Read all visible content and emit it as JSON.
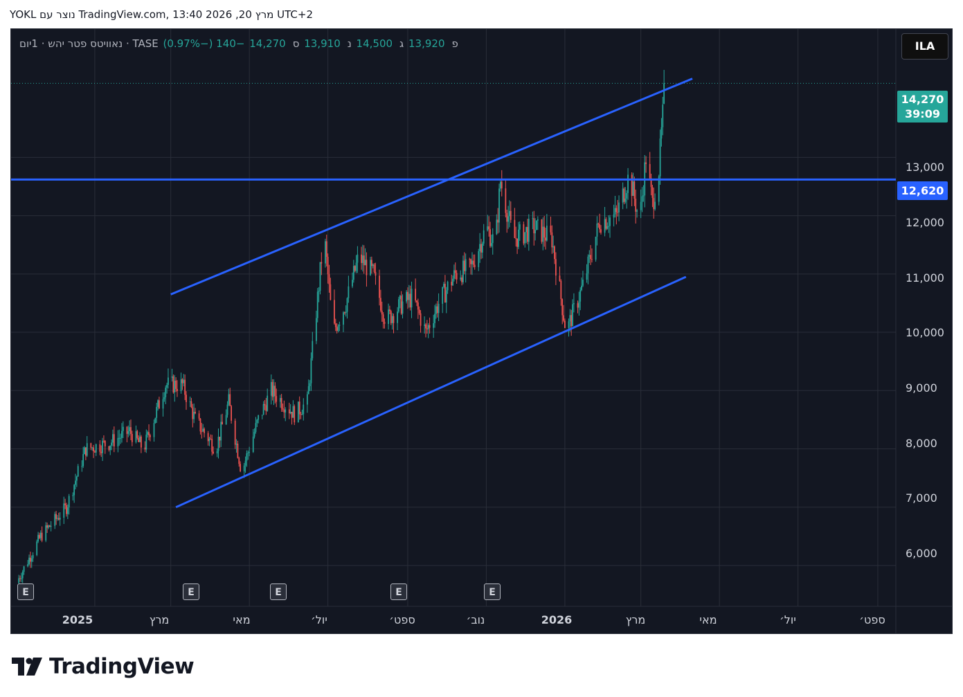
{
  "caption": "YOKL נוצר עם TradingView.com, 13:40 2026 ,20 מרץ UTC+2",
  "legend": {
    "title": "נאוויטס פטר יהש · 1יום · TASE",
    "open_label": "פ",
    "open": "13,920",
    "high_label": "ג",
    "high": "14,500",
    "low_label": "נ",
    "low": "13,910",
    "close_label": "ס",
    "close": "14,270",
    "change": "−140 (−0.97%)"
  },
  "currency": "ILA",
  "last_price": {
    "price": "14,270",
    "countdown": "39:09"
  },
  "level_line": {
    "price": "12,620"
  },
  "earnings_label": "E",
  "colors": {
    "background": "#131722",
    "up": "#26a69a",
    "down": "#ef5350",
    "drawing": "#2962ff",
    "grid": "#2a2e39"
  },
  "chart_data": {
    "type": "candlestick",
    "yticks": [
      "6,000",
      "7,000",
      "8,000",
      "9,000",
      "10,000",
      "11,000",
      "12,000",
      "13,000"
    ],
    "xticks": [
      "2025",
      "מרץ",
      "מאי",
      "יול׳",
      "ספט׳",
      "נוב׳",
      "2026",
      "מרץ",
      "מאי",
      "יול׳",
      "ספט׳"
    ],
    "x_range": [
      "2024-10-28",
      "2026-09-15"
    ],
    "ylim": [
      5300,
      15200
    ],
    "series_path": [
      [
        "2024-11-01",
        5700
      ],
      [
        "2024-11-20",
        6500
      ],
      [
        "2024-12-10",
        7000
      ],
      [
        "2024-12-25",
        8000
      ],
      [
        "2025-01-12",
        8100
      ],
      [
        "2025-01-28",
        8300
      ],
      [
        "2025-02-08",
        8000
      ],
      [
        "2025-02-25",
        9100
      ],
      [
        "2025-03-10",
        9100
      ],
      [
        "2025-03-20",
        8500
      ],
      [
        "2025-04-05",
        8000
      ],
      [
        "2025-04-15",
        8800
      ],
      [
        "2025-04-25",
        7600
      ],
      [
        "2025-05-08",
        8500
      ],
      [
        "2025-05-18",
        9000
      ],
      [
        "2025-06-05",
        8600
      ],
      [
        "2025-06-15",
        8800
      ],
      [
        "2025-06-28",
        11700
      ],
      [
        "2025-07-05",
        10000
      ],
      [
        "2025-07-15",
        10500
      ],
      [
        "2025-07-25",
        11300
      ],
      [
        "2025-08-05",
        11000
      ],
      [
        "2025-08-15",
        10200
      ],
      [
        "2025-08-28",
        10500
      ],
      [
        "2025-09-05",
        10600
      ],
      [
        "2025-09-15",
        10000
      ],
      [
        "2025-09-25",
        10500
      ],
      [
        "2025-10-08",
        11000
      ],
      [
        "2025-10-20",
        11100
      ],
      [
        "2025-11-01",
        11800
      ],
      [
        "2025-11-08",
        11500
      ],
      [
        "2025-11-12",
        12600
      ],
      [
        "2025-11-22",
        11600
      ],
      [
        "2025-12-08",
        11800
      ],
      [
        "2025-12-22",
        11600
      ],
      [
        "2026-01-02",
        10000
      ],
      [
        "2026-01-15",
        10800
      ],
      [
        "2026-01-28",
        11900
      ],
      [
        "2026-02-10",
        12000
      ],
      [
        "2026-02-20",
        12700
      ],
      [
        "2026-02-28",
        11900
      ],
      [
        "2026-03-05",
        13000
      ],
      [
        "2026-03-10",
        12200
      ],
      [
        "2026-03-15",
        12800
      ],
      [
        "2026-03-18",
        13700
      ],
      [
        "2026-03-20",
        14270
      ]
    ],
    "earnings_dates": [
      "2024-11-01",
      "2025-04-10",
      "2025-06-15",
      "2025-09-15",
      "2025-11-15"
    ],
    "channel_upper": [
      [
        "2025-03-01",
        10650
      ],
      [
        "2026-04-10",
        14350
      ]
    ],
    "channel_lower": [
      [
        "2025-03-05",
        7000
      ],
      [
        "2026-04-05",
        10950
      ]
    ],
    "horizontal_level": 12620
  }
}
